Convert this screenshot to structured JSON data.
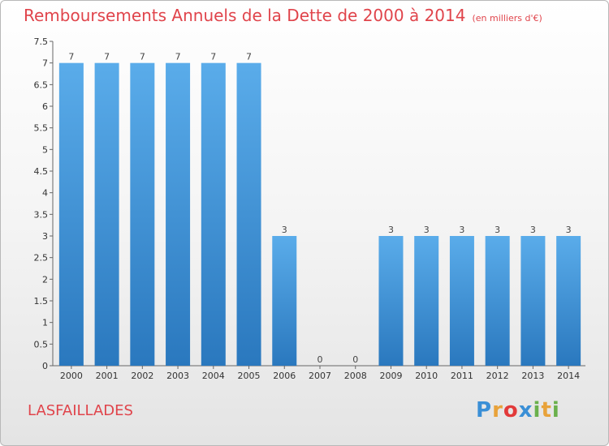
{
  "header": {
    "title": "Remboursements Annuels de la Dette de 2000 à 2014",
    "subtitle": "(en milliers d'€)"
  },
  "footer": {
    "commune": "LASFAILLADES",
    "logo": {
      "letters": [
        "P",
        "r",
        "o",
        "x",
        "i",
        "t",
        "i"
      ],
      "colors": [
        "#3a8fd6",
        "#e8a23a",
        "#e23a3a",
        "#3a8fd6",
        "#6ab04c",
        "#e8a23a",
        "#6ab04c"
      ]
    }
  },
  "chart_data": {
    "type": "bar",
    "categories": [
      "2000",
      "2001",
      "2002",
      "2003",
      "2004",
      "2005",
      "2006",
      "2007",
      "2008",
      "2009",
      "2010",
      "2011",
      "2012",
      "2013",
      "2014"
    ],
    "values": [
      7,
      7,
      7,
      7,
      7,
      7,
      3,
      0,
      0,
      3,
      3,
      3,
      3,
      3,
      3
    ],
    "data_labels": [
      "7",
      "7",
      "7",
      "7",
      "7",
      "7",
      "3",
      "0",
      "0",
      "3",
      "3",
      "3",
      "3",
      "3",
      "3"
    ],
    "yticks": [
      0,
      0.5,
      1,
      1.5,
      2,
      2.5,
      3,
      3.5,
      4,
      4.5,
      5,
      5.5,
      6,
      6.5,
      7,
      7.5
    ],
    "ytick_labels": [
      "0",
      "0.5",
      "1",
      "1.5",
      "2",
      "2.5",
      "3",
      "3.5",
      "4",
      "4.5",
      "5",
      "5.5",
      "6",
      "6.5",
      "7",
      "7.5"
    ],
    "ylim": [
      0,
      7.5
    ],
    "xlabel": "",
    "ylabel": "",
    "grid": false,
    "bar_color_top": "#5aacea",
    "bar_color_bottom": "#2a78be"
  }
}
